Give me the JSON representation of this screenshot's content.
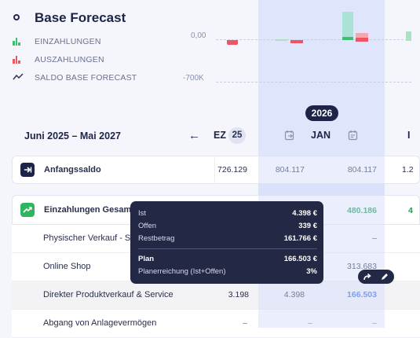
{
  "header": {
    "title": "Base Forecast",
    "legend": [
      {
        "label": "EINZAHLUNGEN",
        "icon": "green-bars-icon",
        "color": "#3cbf6e"
      },
      {
        "label": "AUSZAHLUNGEN",
        "icon": "red-bars-icon",
        "color": "#ec5561"
      },
      {
        "label": "SALDO BASE FORECAST",
        "icon": "line-chart-icon",
        "color": "#2d3457"
      }
    ],
    "axis_top": "0,00",
    "axis_bottom": "-700K"
  },
  "timeline": {
    "year": "2026",
    "range": "Juni 2025 – Mai 2027",
    "month_prev_partial": "EZ",
    "month_prev_badge": "25",
    "month_current": "JAN",
    "month_next_partial": "I"
  },
  "table": {
    "rows": [
      {
        "label": "Anfangssaldo",
        "values": [
          "726.129",
          "804.117",
          "804.117",
          "1.2"
        ]
      },
      {
        "label": "Einzahlungen Gesamt",
        "values": [
          "",
          "",
          "480.186",
          "4"
        ]
      },
      {
        "label": "Physischer Verkauf - S",
        "values": [
          "",
          "",
          "–",
          ""
        ]
      },
      {
        "label": "Online Shop",
        "values": [
          "",
          "",
          "313.683",
          ""
        ]
      },
      {
        "label": "Direkter Produktverkauf & Service",
        "values": [
          "3.198",
          "4.398",
          "166.503",
          ""
        ]
      },
      {
        "label": "Abgang von Anlagevermögen",
        "values": [
          "–",
          "–",
          "–",
          ""
        ]
      }
    ]
  },
  "tooltip": {
    "rows": [
      {
        "key": "Ist",
        "value": "4.398 €"
      },
      {
        "key": "Offen",
        "value": "339 €"
      },
      {
        "key": "Restbetrag",
        "value": "161.766 €"
      },
      {
        "key": "Plan",
        "value": "166.503 €"
      },
      {
        "key": "Planerreichung (Ist+Offen)",
        "value": "3%"
      }
    ]
  },
  "colors": {
    "accent_navy": "#1e2447",
    "green": "#3cbf6e",
    "red": "#ec5561",
    "blue_link": "#3b6fe0",
    "jan_band": "#dfe5fb"
  }
}
